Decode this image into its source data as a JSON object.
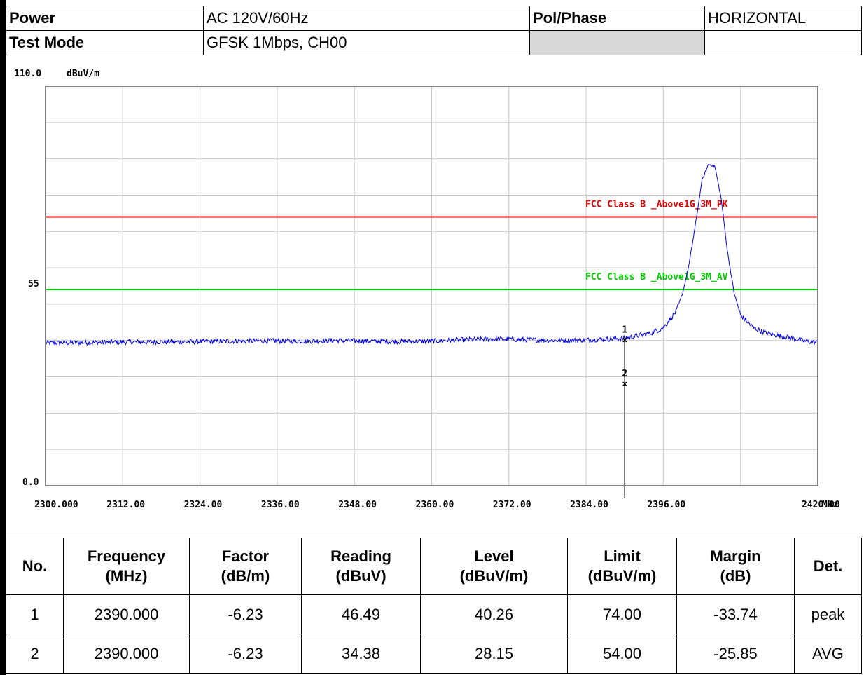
{
  "header": {
    "power_label": "Power",
    "power_value": "AC 120V/60Hz",
    "pol_label": "Pol/Phase",
    "pol_value": "HORIZONTAL",
    "mode_label": "Test Mode",
    "mode_value": "GFSK 1Mbps, CH00"
  },
  "chart_data": {
    "type": "line",
    "ylabel": "dBuV/m",
    "xlabel": "MHz",
    "ylim": [
      0,
      110
    ],
    "xlim": [
      2300,
      2420
    ],
    "y_tick_labels": [
      "110.0",
      "55",
      "0.0"
    ],
    "x_tick_labels": [
      "2300.000",
      "2312.00",
      "2324.00",
      "2336.00",
      "2348.00",
      "2360.00",
      "2372.00",
      "2384.00",
      "2396.00",
      "2420.00"
    ],
    "grid": true,
    "colors": {
      "trace": "#0000e6",
      "pk_limit": "#e00000",
      "av_limit": "#00d000",
      "marker": "#000000",
      "frame": "#808080",
      "grid": "#c8c8c8"
    },
    "limits": [
      {
        "name": "FCC  Class B _Above1G_3M_PK",
        "value": 74.0
      },
      {
        "name": "FCC  Class B _Above1G_3M_AV",
        "value": 54.0
      }
    ],
    "series": [
      {
        "x": [
          2300,
          2305,
          2310,
          2315,
          2320,
          2325,
          2330,
          2335,
          2340,
          2345,
          2350,
          2355,
          2360,
          2365,
          2370,
          2375,
          2380,
          2385,
          2390,
          2392,
          2394,
          2396,
          2398,
          2399,
          2400,
          2401,
          2402,
          2403,
          2404,
          2405,
          2406,
          2407,
          2408,
          2410,
          2412,
          2415,
          2418,
          2420
        ],
        "values": [
          39.3,
          39.4,
          39.5,
          39.6,
          39.6,
          39.7,
          39.8,
          39.9,
          39.8,
          40.0,
          39.8,
          39.7,
          39.8,
          40.2,
          40.4,
          40.2,
          40.0,
          40.2,
          40.6,
          41.3,
          42.0,
          43.5,
          48.0,
          53.0,
          61.0,
          72.0,
          84.0,
          88.5,
          88.0,
          79.0,
          64.0,
          53.0,
          47.0,
          43.5,
          42.0,
          41.0,
          39.8,
          39.4
        ]
      }
    ],
    "markers": [
      {
        "label": "1",
        "x": 2390.0,
        "y": 40.26
      },
      {
        "label": "2",
        "x": 2390.0,
        "y": 28.15
      }
    ]
  },
  "table": {
    "headers": [
      [
        "No."
      ],
      [
        "Frequency",
        "(MHz)"
      ],
      [
        "Factor",
        "(dB/m)"
      ],
      [
        "Reading",
        "(dBuV)"
      ],
      [
        "Level",
        "(dBuV/m)"
      ],
      [
        "Limit",
        "(dBuV/m)"
      ],
      [
        "Margin",
        "(dB)"
      ],
      [
        "Det."
      ]
    ],
    "rows": [
      [
        "1",
        "2390.000",
        "-6.23",
        "46.49",
        "40.26",
        "74.00",
        "-33.74",
        "peak"
      ],
      [
        "2",
        "2390.000",
        "-6.23",
        "34.38",
        "28.15",
        "54.00",
        "-25.85",
        "AVG"
      ]
    ]
  }
}
